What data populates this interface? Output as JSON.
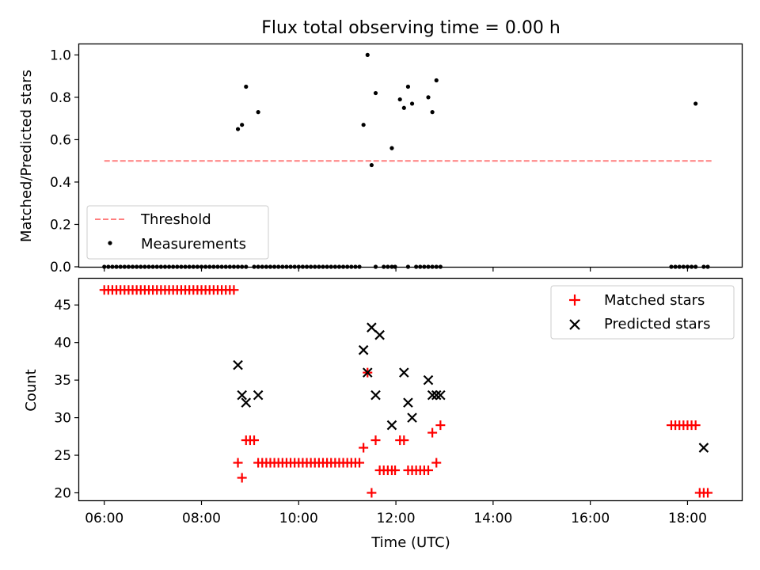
{
  "title": "Flux total observing time = 0.00 h",
  "colors": {
    "threshold": "#ff7f7f",
    "matched": "#ff0000",
    "predicted": "#000000",
    "measurements": "#000000"
  },
  "chart_data": [
    {
      "type": "scatter",
      "ylabel": "Matched/Predicted stars",
      "ylim": [
        0,
        1.05
      ],
      "xlim": [
        "05:29",
        "19:07"
      ],
      "yticks": [
        0.0,
        0.2,
        0.4,
        0.6,
        0.8,
        1.0
      ],
      "ytick_labels": [
        "0.0",
        "0.2",
        "0.4",
        "0.6",
        "0.8",
        "1.0"
      ],
      "legend": {
        "position": "lower-left",
        "entries": [
          "Threshold",
          "Measurements"
        ]
      },
      "threshold": {
        "name": "Threshold",
        "y": 0.5,
        "x_range": [
          "06:00",
          "18:30"
        ]
      },
      "series": [
        {
          "name": "Measurements",
          "x": [
            "06:00",
            "06:05",
            "06:10",
            "06:15",
            "06:20",
            "06:25",
            "06:30",
            "06:35",
            "06:40",
            "06:45",
            "06:50",
            "06:55",
            "07:00",
            "07:05",
            "07:10",
            "07:15",
            "07:20",
            "07:25",
            "07:30",
            "07:35",
            "07:40",
            "07:45",
            "07:50",
            "07:55",
            "08:00",
            "08:05",
            "08:10",
            "08:15",
            "08:20",
            "08:25",
            "08:30",
            "08:35",
            "08:40",
            "08:45",
            "08:50",
            "08:55",
            "09:05",
            "09:10",
            "09:15",
            "09:20",
            "09:25",
            "09:30",
            "09:35",
            "09:40",
            "09:45",
            "09:50",
            "09:55",
            "10:00",
            "10:05",
            "10:10",
            "10:15",
            "10:20",
            "10:25",
            "10:30",
            "10:35",
            "10:40",
            "10:45",
            "10:50",
            "10:55",
            "11:00",
            "11:05",
            "11:10",
            "11:15",
            "11:35",
            "11:45",
            "11:50",
            "11:55",
            "11:59",
            "12:15",
            "12:25",
            "12:30",
            "12:35",
            "12:40",
            "12:45",
            "12:50",
            "12:55",
            "17:40",
            "17:45",
            "17:50",
            "17:55",
            "18:00",
            "18:05",
            "18:10",
            "18:20",
            "18:25",
            "08:45",
            "08:50",
            "08:55",
            "09:10",
            "11:20",
            "11:25",
            "11:30",
            "11:35",
            "11:55",
            "12:05",
            "12:10",
            "12:15",
            "12:20",
            "12:40",
            "12:45",
            "12:50",
            "18:10"
          ],
          "y": [
            0,
            0,
            0,
            0,
            0,
            0,
            0,
            0,
            0,
            0,
            0,
            0,
            0,
            0,
            0,
            0,
            0,
            0,
            0,
            0,
            0,
            0,
            0,
            0,
            0,
            0,
            0,
            0,
            0,
            0,
            0,
            0,
            0,
            0,
            0,
            0,
            0,
            0,
            0,
            0,
            0,
            0,
            0,
            0,
            0,
            0,
            0,
            0,
            0,
            0,
            0,
            0,
            0,
            0,
            0,
            0,
            0,
            0,
            0,
            0,
            0,
            0,
            0,
            0,
            0,
            0,
            0,
            0,
            0,
            0,
            0,
            0,
            0,
            0,
            0,
            0,
            0,
            0,
            0,
            0,
            0,
            0,
            0,
            0,
            0,
            0.65,
            0.67,
            0.85,
            0.73,
            0.67,
            1.0,
            0.48,
            0.82,
            0.56,
            0.79,
            0.75,
            0.85,
            0.77,
            0.8,
            0.73,
            0.88,
            0.77
          ]
        }
      ]
    },
    {
      "type": "scatter",
      "xlabel": "Time (UTC)",
      "ylabel": "Count",
      "ylim": [
        19,
        48.5
      ],
      "xlim": [
        "05:29",
        "19:07"
      ],
      "xticks": [
        "06:00",
        "08:00",
        "10:00",
        "12:00",
        "14:00",
        "16:00",
        "18:00"
      ],
      "yticks": [
        20,
        25,
        30,
        35,
        40,
        45
      ],
      "ytick_labels": [
        "20",
        "25",
        "30",
        "35",
        "40",
        "45"
      ],
      "legend": {
        "position": "top-right",
        "entries": [
          "Matched stars",
          "Predicted stars"
        ]
      },
      "series": [
        {
          "name": "Matched stars",
          "x": [
            "06:00",
            "06:05",
            "06:10",
            "06:15",
            "06:20",
            "06:25",
            "06:30",
            "06:35",
            "06:40",
            "06:45",
            "06:50",
            "06:55",
            "07:00",
            "07:05",
            "07:10",
            "07:15",
            "07:20",
            "07:25",
            "07:30",
            "07:35",
            "07:40",
            "07:45",
            "07:50",
            "07:55",
            "08:00",
            "08:05",
            "08:10",
            "08:15",
            "08:20",
            "08:25",
            "08:30",
            "08:35",
            "08:40",
            "08:45",
            "08:50",
            "08:55",
            "09:00",
            "09:05",
            "09:10",
            "09:15",
            "09:20",
            "09:25",
            "09:30",
            "09:35",
            "09:40",
            "09:45",
            "09:50",
            "09:55",
            "10:00",
            "10:05",
            "10:10",
            "10:15",
            "10:20",
            "10:25",
            "10:30",
            "10:35",
            "10:40",
            "10:45",
            "10:50",
            "10:55",
            "11:00",
            "11:05",
            "11:10",
            "11:15",
            "11:20",
            "11:25",
            "11:30",
            "11:35",
            "11:40",
            "11:45",
            "11:50",
            "11:55",
            "11:59",
            "12:05",
            "12:10",
            "12:15",
            "12:20",
            "12:25",
            "12:30",
            "12:35",
            "12:40",
            "12:45",
            "12:50",
            "12:55",
            "17:40",
            "17:45",
            "17:50",
            "17:55",
            "18:00",
            "18:05",
            "18:10",
            "18:15",
            "18:20",
            "18:25"
          ],
          "y": [
            47,
            47,
            47,
            47,
            47,
            47,
            47,
            47,
            47,
            47,
            47,
            47,
            47,
            47,
            47,
            47,
            47,
            47,
            47,
            47,
            47,
            47,
            47,
            47,
            47,
            47,
            47,
            47,
            47,
            47,
            47,
            47,
            47,
            24,
            22,
            27,
            27,
            27,
            24,
            24,
            24,
            24,
            24,
            24,
            24,
            24,
            24,
            24,
            24,
            24,
            24,
            24,
            24,
            24,
            24,
            24,
            24,
            24,
            24,
            24,
            24,
            24,
            24,
            24,
            26,
            36,
            20,
            27,
            23,
            23,
            23,
            23,
            23,
            27,
            27,
            23,
            23,
            23,
            23,
            23,
            23,
            28,
            24,
            29,
            29,
            29,
            29,
            29,
            29,
            29,
            29,
            20,
            20,
            20
          ]
        },
        {
          "name": "Predicted stars",
          "x": [
            "08:45",
            "08:50",
            "08:55",
            "09:10",
            "11:20",
            "11:25",
            "11:30",
            "11:35",
            "11:40",
            "11:55",
            "12:10",
            "12:15",
            "12:20",
            "12:40",
            "12:45",
            "12:50",
            "12:55",
            "18:20"
          ],
          "y": [
            37,
            33,
            32,
            33,
            39,
            36,
            42,
            33,
            41,
            29,
            36,
            32,
            30,
            35,
            33,
            33,
            33,
            26
          ]
        }
      ]
    }
  ]
}
